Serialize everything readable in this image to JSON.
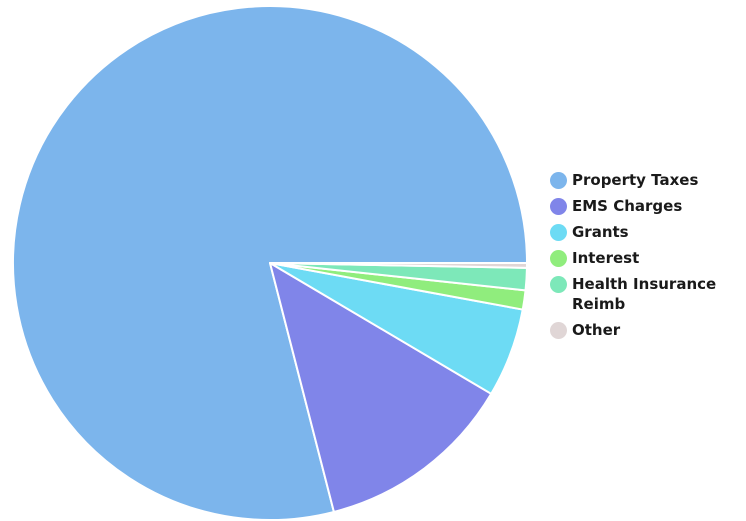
{
  "chart_data": {
    "type": "pie",
    "title": "",
    "categories": [
      "Property Taxes",
      "EMS Charges",
      "Grants",
      "Interest",
      "Health Insurance Reimb",
      "Other"
    ],
    "values": [
      79.0,
      12.5,
      5.6,
      1.2,
      1.4,
      0.3
    ],
    "colors": [
      "#7cb5ec",
      "#8085e9",
      "#6ddbf4",
      "#90ed7d",
      "#7de8b9",
      "#e0d6d6"
    ],
    "legend_placement": "right",
    "start": "3 o'clock, counter-clockwise"
  }
}
